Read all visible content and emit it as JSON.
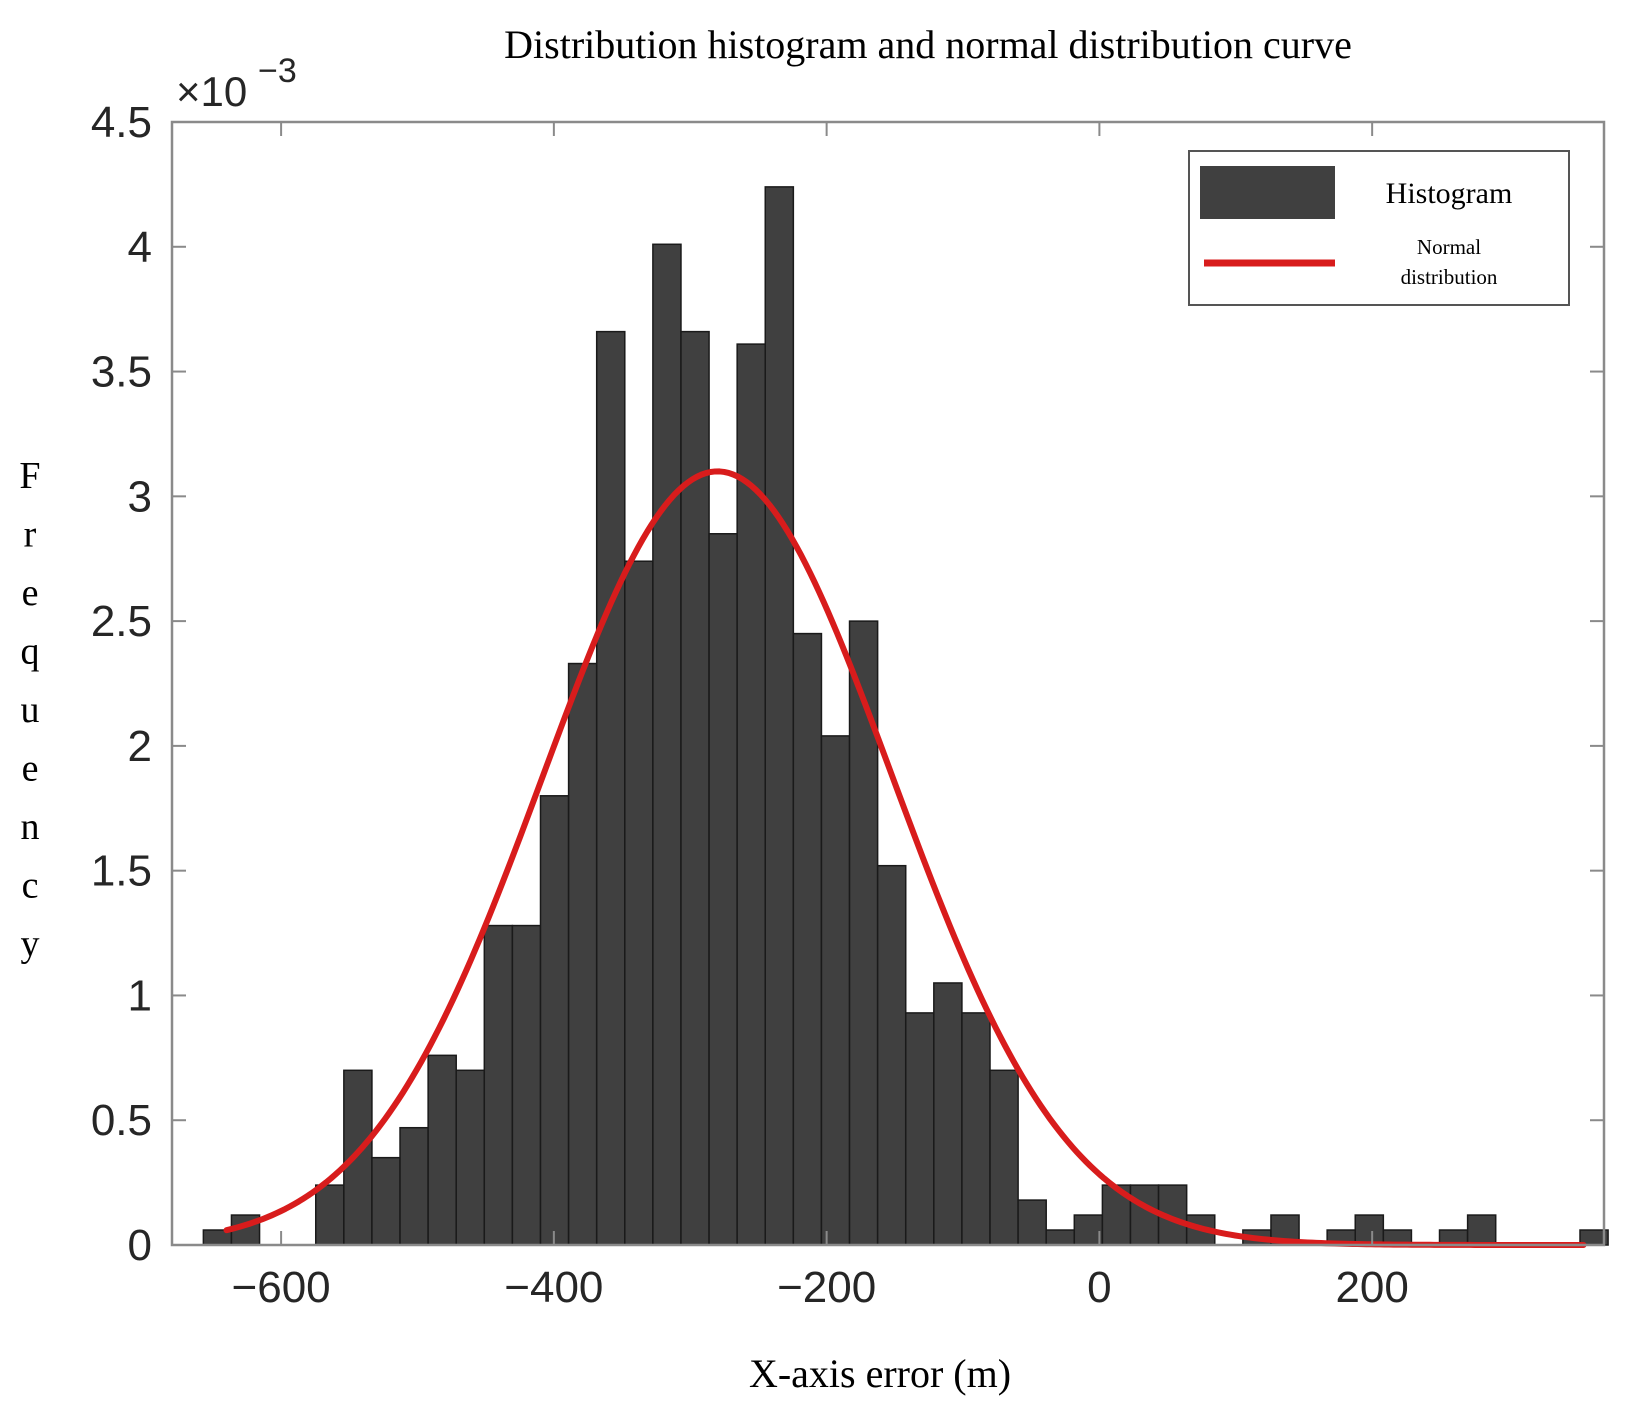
{
  "chart_data": {
    "type": "bar",
    "title": "Distribution histogram and normal distribution curve",
    "xlabel": "X-axis error (m)",
    "ylabel": "Frequency",
    "y_exponent_label": "×10",
    "y_exponent_power": "−3",
    "xlim": [
      -680,
      370
    ],
    "ylim": [
      0,
      4.5
    ],
    "x_ticks": [
      -600,
      -400,
      -200,
      0,
      200
    ],
    "x_tick_labels": [
      "−600",
      "−400",
      "−200",
      "0",
      "200"
    ],
    "y_ticks": [
      0,
      0.5,
      1,
      1.5,
      2,
      2.5,
      3,
      3.5,
      4,
      4.5
    ],
    "y_tick_labels": [
      "0",
      "0.5",
      "1",
      "1.5",
      "2",
      "2.5",
      "3",
      "3.5",
      "4",
      "4.5"
    ],
    "grid": false,
    "legend": {
      "placement": "top-right",
      "entries": [
        {
          "label": "Histogram",
          "type": "bar",
          "color": "#404040"
        },
        {
          "label_lines": [
            "Normal",
            "distribution"
          ],
          "type": "line",
          "color": "#d81c1c"
        }
      ]
    },
    "series": [
      {
        "name": "Histogram",
        "type": "bar",
        "color": "#404040",
        "bin_width": 20.6,
        "bin_lefts": [
          -657,
          -636.4,
          -615.8,
          -595.2,
          -574.6,
          -554,
          -533.4,
          -512.8,
          -492.2,
          -471.6,
          -451,
          -430.4,
          -409.8,
          -389.2,
          -368.6,
          -348,
          -327.4,
          -306.8,
          -286.2,
          -265.6,
          -245,
          -224.4,
          -203.8,
          -183.2,
          -162.6,
          -142,
          -121.4,
          -100.8,
          -80.2,
          -59.6,
          -39,
          -18.4,
          2.2,
          22.8,
          43.4,
          64,
          84.6,
          105.2,
          125.8,
          146.4,
          167,
          187.6,
          208.2,
          228.8,
          249.4,
          270,
          290.6,
          311.2,
          331.8,
          352.4
        ],
        "values": [
          0.06,
          0.12,
          0,
          0,
          0.24,
          0.7,
          0.35,
          0.47,
          0.76,
          0.7,
          1.28,
          1.28,
          1.8,
          2.33,
          3.66,
          2.74,
          4.01,
          3.66,
          2.85,
          3.61,
          4.24,
          2.45,
          2.04,
          2.5,
          1.52,
          0.93,
          1.05,
          0.93,
          0.7,
          0.18,
          0.06,
          0.12,
          0.24,
          0.24,
          0.24,
          0.12,
          0,
          0.06,
          0.12,
          0,
          0.06,
          0.12,
          0.06,
          0,
          0.06,
          0.12,
          0,
          0,
          0,
          0.06
        ]
      },
      {
        "name": "Normal distribution",
        "type": "line",
        "color": "#d81c1c",
        "mean": -280,
        "std": 128,
        "peak": 3.1,
        "x_range": [
          -640,
          355
        ]
      }
    ]
  }
}
